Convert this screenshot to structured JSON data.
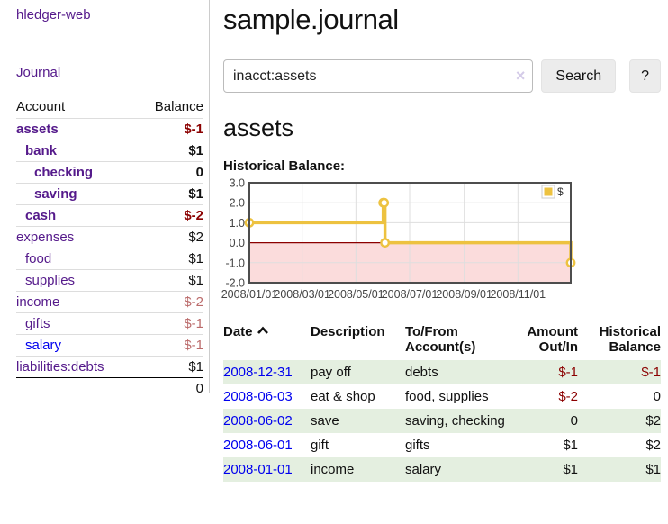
{
  "app": {
    "title": "hledger-web"
  },
  "colors": {
    "link_purple": "#551a8b",
    "link_blue": "#0000ee",
    "negative_strong": "#8b0000",
    "negative_soft": "#bb6b6b",
    "row_green": "#e4efe0",
    "series_gold": "#edc240"
  },
  "sidebar": {
    "journal_link": "Journal",
    "accounts_table": {
      "headers": {
        "account": "Account",
        "balance": "Balance"
      },
      "rows": [
        {
          "name": "assets",
          "balance": "$-1",
          "indent": 0,
          "bold": true,
          "balance_style": "neg-strong",
          "link_style": "visited"
        },
        {
          "name": "bank",
          "balance": "$1",
          "indent": 1,
          "bold": true,
          "balance_style": "normal",
          "link_style": "visited"
        },
        {
          "name": "checking",
          "balance": "0",
          "indent": 2,
          "bold": true,
          "balance_style": "normal",
          "link_style": "visited"
        },
        {
          "name": "saving",
          "balance": "$1",
          "indent": 2,
          "bold": true,
          "balance_style": "normal",
          "link_style": "visited"
        },
        {
          "name": "cash",
          "balance": "$-2",
          "indent": 1,
          "bold": true,
          "balance_style": "neg-strong",
          "link_style": "visited"
        },
        {
          "name": "expenses",
          "balance": "$2",
          "indent": 0,
          "bold": false,
          "balance_style": "normal",
          "link_style": "visited"
        },
        {
          "name": "food",
          "balance": "$1",
          "indent": 1,
          "bold": false,
          "balance_style": "normal",
          "link_style": "visited"
        },
        {
          "name": "supplies",
          "balance": "$1",
          "indent": 1,
          "bold": false,
          "balance_style": "normal",
          "link_style": "visited"
        },
        {
          "name": "income",
          "balance": "$-2",
          "indent": 0,
          "bold": false,
          "balance_style": "neg-soft",
          "link_style": "visited"
        },
        {
          "name": "gifts",
          "balance": "$-1",
          "indent": 1,
          "bold": false,
          "balance_style": "neg-soft",
          "link_style": "visited"
        },
        {
          "name": "salary",
          "balance": "$-1",
          "indent": 1,
          "bold": false,
          "balance_style": "neg-soft",
          "link_style": "unvisited"
        },
        {
          "name": "liabilities:debts",
          "balance": "$1",
          "indent": 0,
          "bold": false,
          "balance_style": "normal",
          "link_style": "visited"
        }
      ],
      "total": "0"
    }
  },
  "main": {
    "title": "sample.journal",
    "search": {
      "value": "inacct:assets",
      "clear_icon": "×",
      "button_label": "Search",
      "help_label": "?"
    },
    "account_heading": "assets",
    "chart_label": "Historical Balance:"
  },
  "chart_data": {
    "type": "line",
    "title": "Historical Balance",
    "steps": true,
    "legend": "$",
    "legend_position": "top-right",
    "grid": true,
    "ylim": [
      -2,
      3
    ],
    "y_ticks": [
      "3.0",
      "2.0",
      "1.0",
      "0.0",
      "-1.0",
      "-2.0"
    ],
    "x_ticks": [
      "2008/01/01",
      "2008/03/01",
      "2008/05/01",
      "2008/07/01",
      "2008/09/01",
      "2008/11/01"
    ],
    "series": [
      {
        "name": "$",
        "color": "#edc240",
        "points": [
          {
            "date": "2008-01-01",
            "value": 1
          },
          {
            "date": "2008-06-01",
            "value": 2
          },
          {
            "date": "2008-06-02",
            "value": 2
          },
          {
            "date": "2008-06-03",
            "value": 0
          },
          {
            "date": "2008-12-31",
            "value": -1
          }
        ]
      }
    ],
    "negative_fill": "#fbdcdc",
    "zero_line_color": "#8b0000"
  },
  "register_table": {
    "headers": {
      "date": "Date",
      "description": "Description",
      "account": "To/From Account(s)",
      "amount": "Amount Out/In",
      "balance": "Historical Balance"
    },
    "rows": [
      {
        "date": "2008-12-31",
        "description": "pay off",
        "account": "debts",
        "amount": "$-1",
        "balance": "$-1"
      },
      {
        "date": "2008-06-03",
        "description": "eat & shop",
        "account": "food, supplies",
        "amount": "$-2",
        "balance": "0"
      },
      {
        "date": "2008-06-02",
        "description": "save",
        "account": "saving, checking",
        "amount": "0",
        "balance": "$2"
      },
      {
        "date": "2008-06-01",
        "description": "gift",
        "account": "gifts",
        "amount": "$1",
        "balance": "$2"
      },
      {
        "date": "2008-01-01",
        "description": "income",
        "account": "salary",
        "amount": "$1",
        "balance": "$1"
      }
    ]
  }
}
